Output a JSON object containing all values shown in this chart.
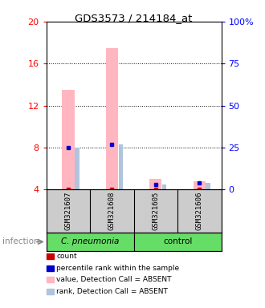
{
  "title": "GDS3573 / 214184_at",
  "samples": [
    "GSM321607",
    "GSM321608",
    "GSM321605",
    "GSM321606"
  ],
  "ylim_left": [
    4,
    20
  ],
  "ylim_right": [
    0,
    100
  ],
  "yticks_left": [
    4,
    8,
    12,
    16,
    20
  ],
  "yticks_right": [
    0,
    25,
    50,
    75,
    100
  ],
  "ytick_labels_right": [
    "0",
    "25",
    "50",
    "75",
    "100%"
  ],
  "bar_value_color": "#ffb6c1",
  "bar_rank_color": "#b0c4de",
  "dot_blue_color": "#0000cd",
  "dot_red_color": "#cc0000",
  "sample_data": [
    {
      "value": 13.5,
      "rank_pct": 25,
      "count": 4.05,
      "detection": "ABSENT"
    },
    {
      "value": 17.5,
      "rank_pct": 27,
      "count": 4.05,
      "detection": "ABSENT"
    },
    {
      "value": 5.0,
      "rank_pct": 3,
      "count": 4.05,
      "detection": "ABSENT"
    },
    {
      "value": 4.8,
      "rank_pct": 4,
      "count": 4.05,
      "detection": "ABSENT"
    }
  ],
  "cpneumonia_color": "#66dd66",
  "control_color": "#66dd66",
  "bg_color": "#cccccc",
  "infection_label": "infection",
  "legend_labels": [
    "count",
    "percentile rank within the sample",
    "value, Detection Call = ABSENT",
    "rank, Detection Call = ABSENT"
  ],
  "legend_colors": [
    "#cc0000",
    "#0000cd",
    "#ffb6c1",
    "#b0c4de"
  ]
}
